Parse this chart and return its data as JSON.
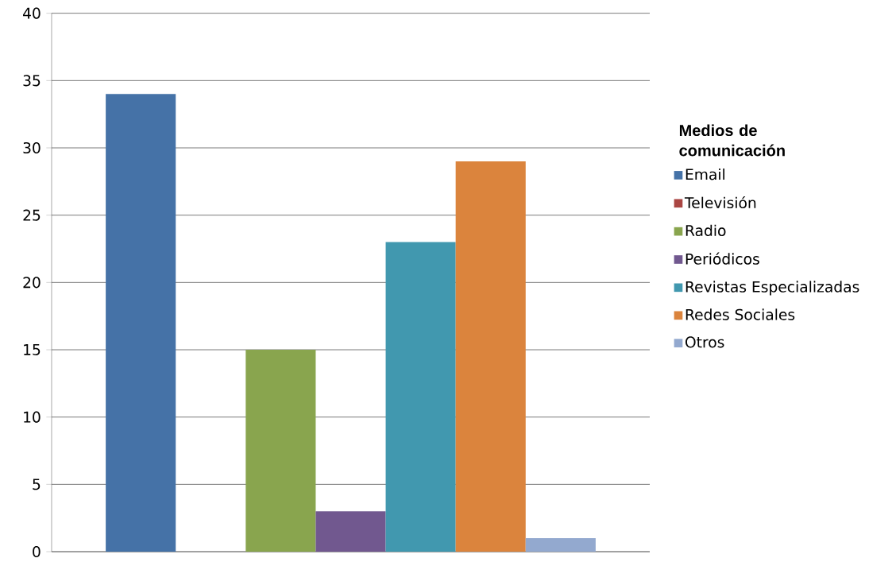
{
  "chart_data": {
    "type": "bar",
    "categories": [
      null
    ],
    "legend_title": "Medios de comunicación",
    "series": [
      {
        "name": "Email",
        "color": "#4572a7",
        "values": [
          34
        ]
      },
      {
        "name": "Televisión",
        "color": "#aa4643",
        "values": [
          0
        ]
      },
      {
        "name": "Radio",
        "color": "#89a54e",
        "values": [
          15
        ]
      },
      {
        "name": "Periódicos",
        "color": "#71588f",
        "values": [
          3
        ]
      },
      {
        "name": "Revistas Especializadas",
        "color": "#4198af",
        "values": [
          23
        ]
      },
      {
        "name": "Redes Sociales",
        "color": "#db843d",
        "values": [
          29
        ]
      },
      {
        "name": "Otros",
        "color": "#93a9cf",
        "values": [
          1
        ]
      }
    ],
    "ylim": [
      0,
      40
    ],
    "yticks": [
      0,
      5,
      10,
      15,
      20,
      25,
      30,
      35,
      40
    ],
    "grid": "y",
    "legend": "right"
  }
}
